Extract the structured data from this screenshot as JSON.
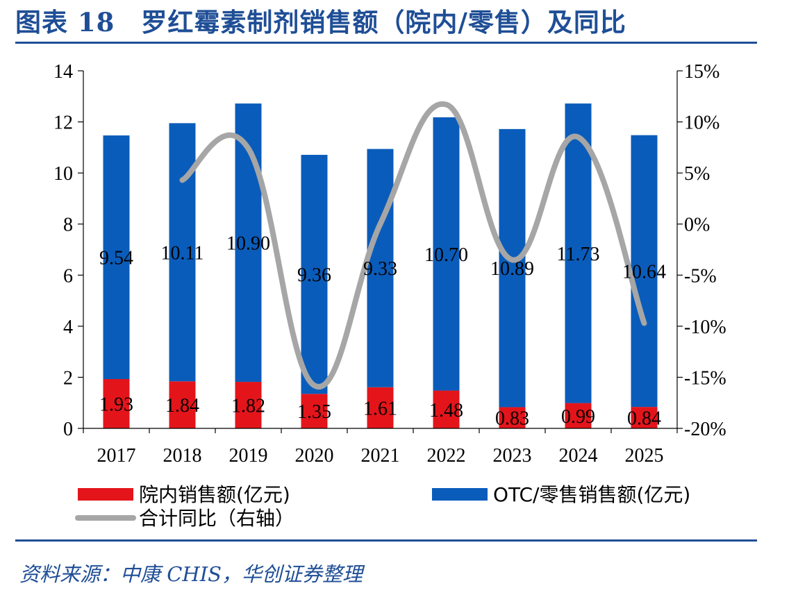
{
  "header": {
    "title": "图表 18　罗红霉素制剂销售额（院内/零售）及同比"
  },
  "footer": {
    "source": "资料来源：中康 CHIS，华创证券整理"
  },
  "colors": {
    "hospital": "#e3151b",
    "otc": "#0a5cba",
    "yoy": "#a6a6a6",
    "title": "#1f4e96"
  },
  "chart_data": {
    "type": "bar",
    "stacked": true,
    "categories": [
      "2017",
      "2018",
      "2019",
      "2020",
      "2021",
      "2022",
      "2023",
      "2024",
      "2025"
    ],
    "series": [
      {
        "name": "院内销售额(亿元)",
        "type": "bar",
        "axis": "left",
        "color": "#e3151b",
        "values": [
          1.93,
          1.84,
          1.82,
          1.35,
          1.61,
          1.48,
          0.83,
          0.99,
          0.84
        ],
        "labels": [
          "1.93",
          "1.84",
          "1.82",
          "1.35",
          "1.61",
          "1.48",
          "0.83",
          "0.99",
          "0.84"
        ]
      },
      {
        "name": "OTC/零售销售额(亿元)",
        "type": "bar",
        "axis": "left",
        "color": "#0a5cba",
        "values": [
          9.54,
          10.11,
          10.9,
          9.36,
          9.33,
          10.7,
          10.89,
          11.73,
          10.64
        ],
        "labels": [
          "9.54",
          "10.11",
          "10.90",
          "9.36",
          "9.33",
          "10.70",
          "10.89",
          "11.73",
          "10.64"
        ]
      },
      {
        "name": "合计同比（右轴）",
        "type": "line",
        "axis": "right",
        "color": "#a6a6a6",
        "values": [
          null,
          0.043,
          0.074,
          -0.158,
          0.0,
          0.117,
          -0.035,
          0.085,
          -0.097
        ]
      }
    ],
    "y_left": {
      "min": 0,
      "max": 14,
      "ticks": [
        "0",
        "2",
        "4",
        "6",
        "8",
        "10",
        "12",
        "14"
      ]
    },
    "y_right": {
      "min": -0.2,
      "max": 0.15,
      "ticks": [
        "-20%",
        "-15%",
        "-10%",
        "-5%",
        "0%",
        "5%",
        "10%",
        "15%"
      ]
    },
    "legend": {
      "position": "bottom"
    },
    "grid": false
  }
}
